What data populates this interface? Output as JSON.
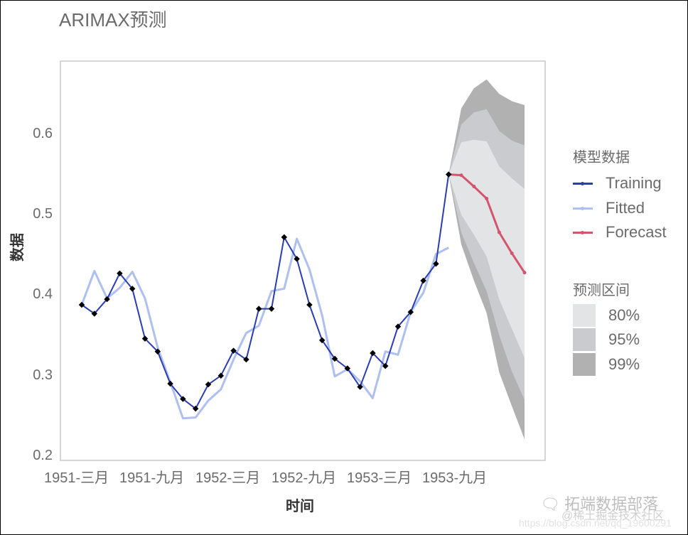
{
  "title": "ARIMAX预测",
  "axes": {
    "xlabel": "时间",
    "ylabel": "数据",
    "yticks": [
      "0.6",
      "0.5",
      "0.4",
      "0.3",
      "0.2"
    ],
    "xticks": [
      "1951-三月",
      "1951-九月",
      "1952-三月",
      "1952-九月",
      "1953-三月",
      "1953-九月"
    ]
  },
  "legend": {
    "model_title": "模型数据",
    "series": [
      {
        "label": "Training",
        "color": "#2a3eb1"
      },
      {
        "label": "Fitted",
        "color": "#aebff0"
      },
      {
        "label": "Forecast",
        "color": "#d4546e"
      }
    ],
    "interval_title": "预测区间",
    "intervals": [
      {
        "label": "80%",
        "color": "#e3e4e6"
      },
      {
        "label": "95%",
        "color": "#c9cbcf"
      },
      {
        "label": "99%",
        "color": "#b1b1b1"
      }
    ]
  },
  "watermark": {
    "main": "拓端数据部落",
    "sub": "@稀土掘金技术社区",
    "url": "https://blog.csdn.net/qq_19600291"
  },
  "chart_data": {
    "type": "line",
    "title": "ARIMAX预测",
    "xlabel": "时间",
    "ylabel": "数据",
    "ylim": [
      0.2,
      0.69
    ],
    "grid": false,
    "legend_position": "right",
    "x_tick_labels": [
      "1951-三月",
      "1951-九月",
      "1952-三月",
      "1952-九月",
      "1953-三月",
      "1953-九月"
    ],
    "series": [
      {
        "name": "Training",
        "color": "#2a3eb1",
        "values": [
          0.388,
          0.377,
          0.395,
          0.427,
          0.408,
          0.346,
          0.33,
          0.29,
          0.271,
          0.259,
          0.289,
          0.3,
          0.331,
          0.32,
          0.383,
          0.383,
          0.472,
          0.445,
          0.388,
          0.344,
          0.321,
          0.309,
          0.286,
          0.328,
          0.312,
          0.361,
          0.379,
          0.418,
          0.439,
          0.55
        ]
      },
      {
        "name": "Fitted",
        "color": "#aebff0",
        "values": [
          0.388,
          0.43,
          0.396,
          0.409,
          0.429,
          0.396,
          0.335,
          0.292,
          0.247,
          0.248,
          0.269,
          0.283,
          0.32,
          0.353,
          0.362,
          0.405,
          0.408,
          0.47,
          0.432,
          0.375,
          0.299,
          0.308,
          0.293,
          0.272,
          0.33,
          0.326,
          0.379,
          0.403,
          0.451,
          0.459
        ]
      },
      {
        "name": "Forecast",
        "color": "#d4546e",
        "values": [
          0.55,
          0.549,
          0.535,
          0.52,
          0.478,
          0.452,
          0.428
        ]
      }
    ],
    "intervals": {
      "80%": {
        "upper": [
          0.55,
          0.59,
          0.593,
          0.591,
          0.56,
          0.545,
          0.532
        ],
        "lower": [
          0.55,
          0.5,
          0.475,
          0.448,
          0.395,
          0.358,
          0.322
        ]
      },
      "95%": {
        "upper": [
          0.55,
          0.612,
          0.627,
          0.631,
          0.604,
          0.592,
          0.586
        ],
        "lower": [
          0.55,
          0.478,
          0.44,
          0.405,
          0.35,
          0.305,
          0.27
        ]
      },
      "99%": {
        "upper": [
          0.55,
          0.632,
          0.657,
          0.668,
          0.65,
          0.641,
          0.636
        ],
        "lower": [
          0.55,
          0.463,
          0.418,
          0.378,
          0.304,
          0.262,
          0.221
        ]
      }
    }
  }
}
